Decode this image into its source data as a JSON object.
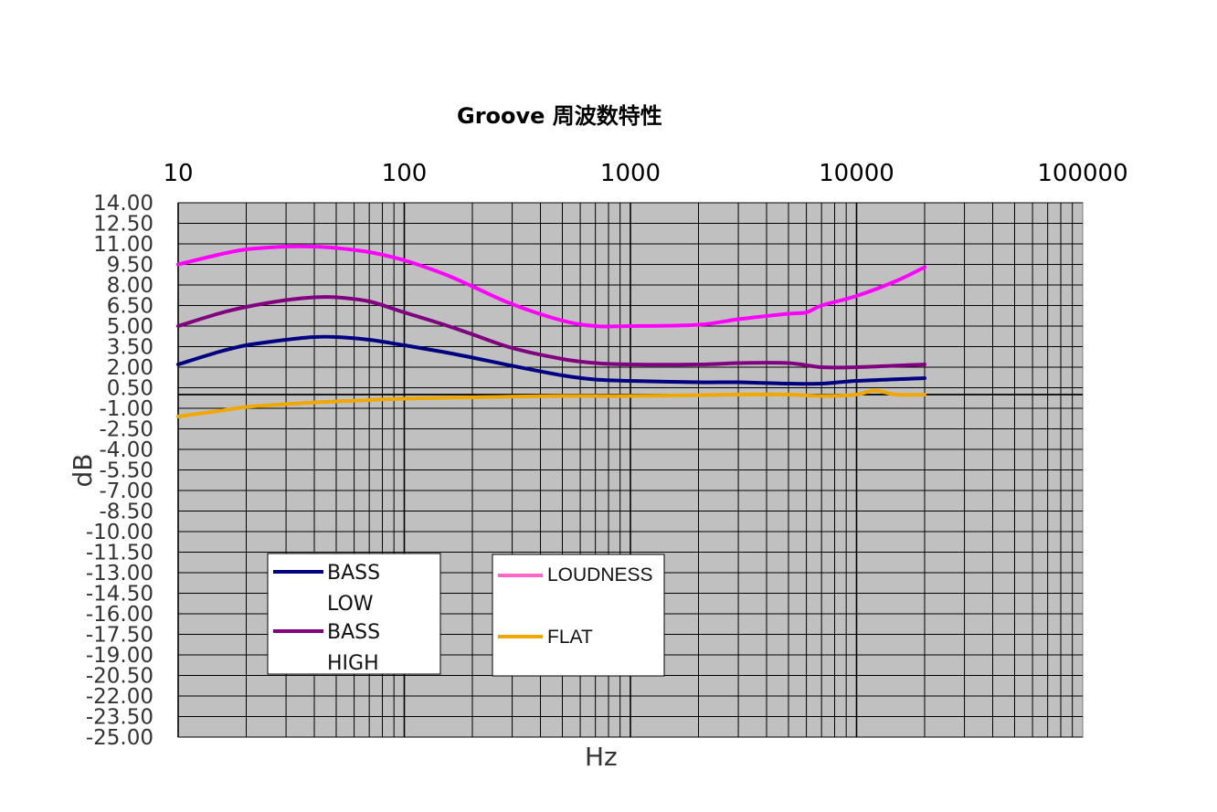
{
  "chart_data": {
    "type": "line",
    "title": "Groove  周波数特性",
    "xlabel": "Hz",
    "ylabel": "dB",
    "x_scale": "log",
    "xlim": [
      10,
      100000
    ],
    "ylim": [
      -25,
      14
    ],
    "x_tick_labels": [
      "10",
      "100",
      "1000",
      "10000",
      "100000"
    ],
    "y_tick_labels": [
      "14.00",
      "12.50",
      "11.00",
      "9.50",
      "8.00",
      "6.50",
      "5.00",
      "3.50",
      "2.00",
      "0.50",
      "-1.00",
      "-2.50",
      "-4.00",
      "-5.50",
      "-7.00",
      "-8.50",
      "-10.00",
      "-11.50",
      "-13.00",
      "-14.50",
      "-16.00",
      "-17.50",
      "-19.00",
      "-20.50",
      "-22.00",
      "-23.50",
      "-25.00"
    ],
    "grid": true,
    "series": [
      {
        "name": "BASS LOW",
        "color": "#000080",
        "x": [
          10,
          15,
          20,
          30,
          40,
          50,
          70,
          100,
          150,
          200,
          300,
          500,
          700,
          1000,
          2000,
          3000,
          5000,
          7000,
          10000,
          20000
        ],
        "y": [
          2.2,
          3.1,
          3.6,
          4.0,
          4.2,
          4.2,
          4.0,
          3.6,
          3.1,
          2.7,
          2.1,
          1.4,
          1.1,
          1.0,
          0.9,
          0.9,
          0.8,
          0.8,
          1.0,
          1.2
        ]
      },
      {
        "name": "BASS HIGH",
        "color": "#800080",
        "x": [
          10,
          15,
          20,
          30,
          40,
          50,
          70,
          100,
          150,
          200,
          300,
          500,
          700,
          1000,
          2000,
          3000,
          5000,
          7000,
          10000,
          20000
        ],
        "y": [
          5.0,
          5.9,
          6.4,
          6.9,
          7.1,
          7.1,
          6.8,
          6.0,
          5.1,
          4.4,
          3.4,
          2.6,
          2.3,
          2.2,
          2.2,
          2.3,
          2.3,
          2.0,
          2.0,
          2.2
        ]
      },
      {
        "name": "LOUDNESS",
        "color": "#ff00ff",
        "x": [
          10,
          15,
          20,
          30,
          40,
          50,
          70,
          100,
          150,
          200,
          300,
          500,
          700,
          1000,
          2000,
          3000,
          5000,
          6000,
          7000,
          10000,
          15000,
          20000
        ],
        "y": [
          9.5,
          10.2,
          10.6,
          10.8,
          10.8,
          10.7,
          10.4,
          9.8,
          8.8,
          7.9,
          6.6,
          5.4,
          5.0,
          5.0,
          5.1,
          5.5,
          5.9,
          6.0,
          6.5,
          7.2,
          8.3,
          9.3
        ]
      },
      {
        "name": "FLAT",
        "color": "#f0a800",
        "x": [
          10,
          15,
          20,
          30,
          50,
          100,
          200,
          500,
          1000,
          3000,
          5000,
          7000,
          10000,
          12000,
          15000,
          20000
        ],
        "y": [
          -1.6,
          -1.2,
          -0.9,
          -0.7,
          -0.5,
          -0.3,
          -0.2,
          -0.1,
          -0.1,
          0.0,
          0.0,
          -0.1,
          0.0,
          0.3,
          0.0,
          0.0
        ]
      }
    ],
    "legends": [
      {
        "entries": [
          "BASS LOW",
          "BASS HIGH"
        ],
        "position": "lower-left",
        "lines": [
          [
            "BASS",
            "LOW"
          ],
          [
            "BASS",
            "HIGH"
          ]
        ]
      },
      {
        "entries": [
          "LOUDNESS",
          "FLAT"
        ],
        "position": "lower-center"
      }
    ]
  }
}
